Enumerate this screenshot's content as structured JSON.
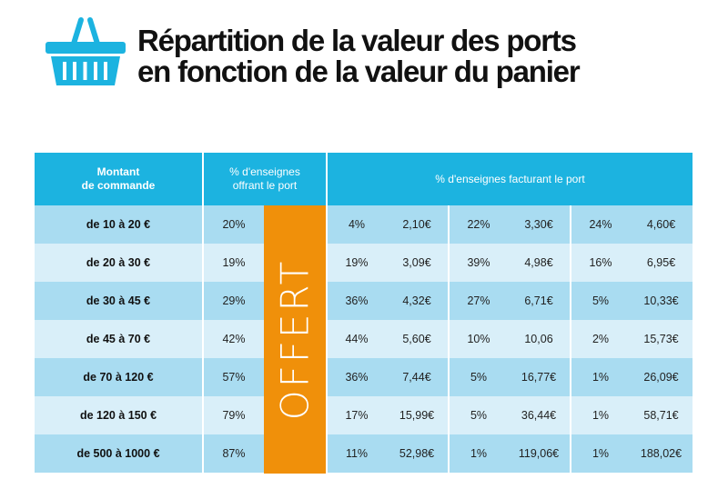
{
  "title": {
    "line1": "Répartition de la valeur des ports",
    "line2": "en fonction de la valeur du panier"
  },
  "colors": {
    "header": "#1cb3e0",
    "row_dark": "#a9dcf1",
    "row_light": "#d9eff9",
    "offert": "#f0900a",
    "basket": "#1cb3e0"
  },
  "icon": "shopping-basket-icon",
  "table": {
    "col_montant": "Montant\nde commande",
    "col_offrant": "% d'enseignes\noffrant le port",
    "col_facturant": "% d'enseignes facturant le port",
    "offert": "OFFERT",
    "rows": [
      {
        "label": "de 10 à 20 €",
        "offrant": "20%",
        "p1": "4%",
        "v1": "2,10€",
        "p2": "22%",
        "v2": "3,30€",
        "p3": "24%",
        "v3": "4,60€"
      },
      {
        "label": "de 20 à 30 €",
        "offrant": "19%",
        "p1": "19%",
        "v1": "3,09€",
        "p2": "39%",
        "v2": "4,98€",
        "p3": "16%",
        "v3": "6,95€"
      },
      {
        "label": "de 30 à 45 €",
        "offrant": "29%",
        "p1": "36%",
        "v1": "4,32€",
        "p2": "27%",
        "v2": "6,71€",
        "p3": "5%",
        "v3": "10,33€"
      },
      {
        "label": "de 45 à 70 €",
        "offrant": "42%",
        "p1": "44%",
        "v1": "5,60€",
        "p2": "10%",
        "v2": "10,06",
        "p3": "2%",
        "v3": "15,73€"
      },
      {
        "label": "de 70 à 120 €",
        "offrant": "57%",
        "p1": "36%",
        "v1": "7,44€",
        "p2": "5%",
        "v2": "16,77€",
        "p3": "1%",
        "v3": "26,09€"
      },
      {
        "label": "de 120 à 150 €",
        "offrant": "79%",
        "p1": "17%",
        "v1": "15,99€",
        "p2": "5%",
        "v2": "36,44€",
        "p3": "1%",
        "v3": "58,71€"
      },
      {
        "label": "de 500 à 1000 €",
        "offrant": "87%",
        "p1": "11%",
        "v1": "52,98€",
        "p2": "1%",
        "v2": "119,06€",
        "p3": "1%",
        "v3": "188,02€"
      }
    ]
  }
}
